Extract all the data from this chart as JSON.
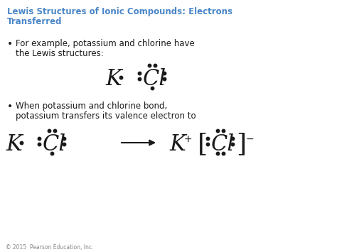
{
  "title_line1": "Lewis Structures of Ionic Compounds: Electrons",
  "title_line2": "Transferred",
  "title_color": "#4a86c8",
  "bullet1_line1": "For example, potassium and chlorine have",
  "bullet1_line2": "the Lewis structures:",
  "bullet2_line1": "When potassium and chlorine bond,",
  "bullet2_line2": "potassium transfers its valence electron to",
  "footer": "© 2015  Pearson Education, Inc.",
  "bg_color": "#ffffff",
  "text_color": "#1a1a1a",
  "figsize": [
    4.74,
    3.55
  ],
  "dpi": 100
}
